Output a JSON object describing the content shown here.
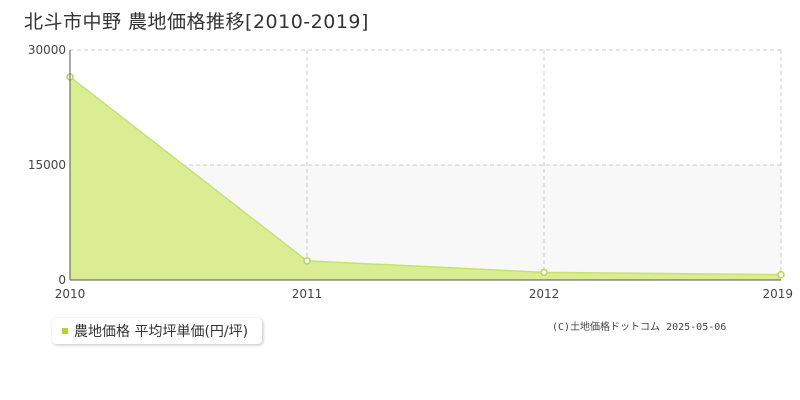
{
  "page": {
    "title": "北斗市中野 農地価格推移[2010-2019]",
    "copyright": "(C)土地価格ドットコム 2025-05-06"
  },
  "legend": {
    "label": "農地価格 平均坪単価(円/坪)"
  },
  "colors": {
    "area_fill": "#dbed93",
    "line": "#c4e36d",
    "marker_stroke": "#b5d75a",
    "legend_swatch": "#a6d83a",
    "plot_band": "#f8f8f8",
    "grid": "#cccccc",
    "axis": "#555555"
  },
  "chart_data": {
    "type": "area",
    "title": "北斗市中野 農地価格推移[2010-2019]",
    "x": [
      2010,
      2011,
      2012,
      2019
    ],
    "x_tick_labels": [
      "2010",
      "2011",
      "2012",
      "2019"
    ],
    "ylim": [
      0,
      30000
    ],
    "y_ticks": [
      0,
      15000,
      30000
    ],
    "y_tick_labels": [
      "0",
      "15000",
      "30000"
    ],
    "series": [
      {
        "name": "農地価格 平均坪単価(円/坪)",
        "values": [
          26500,
          2500,
          1000,
          700
        ]
      }
    ],
    "grid": true,
    "legend_position": "bottom-left"
  }
}
